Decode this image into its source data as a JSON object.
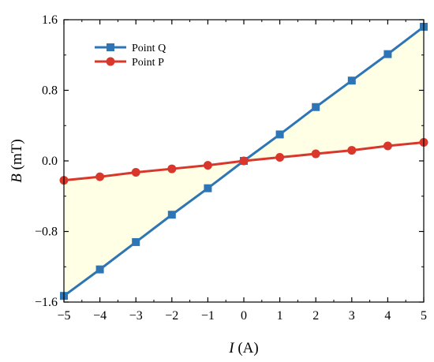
{
  "chart_data": {
    "type": "line",
    "x": [
      -5,
      -4,
      -3,
      -2,
      -1,
      0,
      1,
      2,
      3,
      4,
      5
    ],
    "series": [
      {
        "name": "Point Q",
        "marker": "square",
        "color": "#2E75B6",
        "values": [
          -1.53,
          -1.23,
          -0.92,
          -0.61,
          -0.31,
          0.0,
          0.3,
          0.61,
          0.91,
          1.21,
          1.52
        ]
      },
      {
        "name": "Point P",
        "marker": "circle",
        "color": "#D9372B",
        "values": [
          -0.22,
          -0.18,
          -0.13,
          -0.09,
          -0.05,
          0.0,
          0.04,
          0.08,
          0.12,
          0.17,
          0.21
        ]
      }
    ],
    "xlim": [
      -5,
      5
    ],
    "ylim": [
      -1.6,
      1.6
    ],
    "xticks": [
      "−5",
      "−4",
      "−3",
      "−2",
      "−1",
      "0",
      "1",
      "2",
      "3",
      "4",
      "5"
    ],
    "yticks": [
      "−1.6",
      "−0.8",
      "0.0",
      "0.8",
      "1.6"
    ],
    "xlabel": {
      "var": "I",
      "unit": " (A)"
    },
    "ylabel": {
      "var": "B",
      "unit": " (mT)"
    },
    "fill_between": {
      "color": "#FFFFE6"
    },
    "legend": "top-left",
    "grid": false
  }
}
